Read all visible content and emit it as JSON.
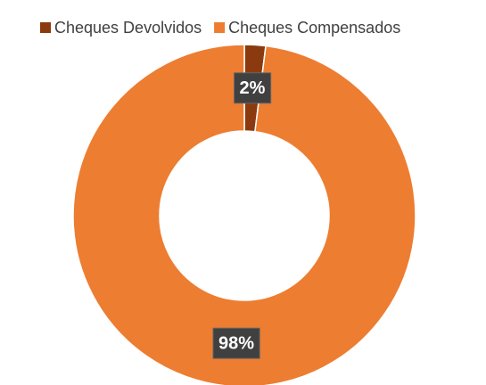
{
  "chart_data": {
    "type": "donut",
    "categories": [
      "Cheques Devolvidos",
      "Cheques Compensados"
    ],
    "values": [
      2,
      98
    ],
    "value_labels": [
      "2%",
      "98%"
    ],
    "colors": [
      "#8b3a0f",
      "#ed7d31"
    ],
    "legend": "top"
  }
}
